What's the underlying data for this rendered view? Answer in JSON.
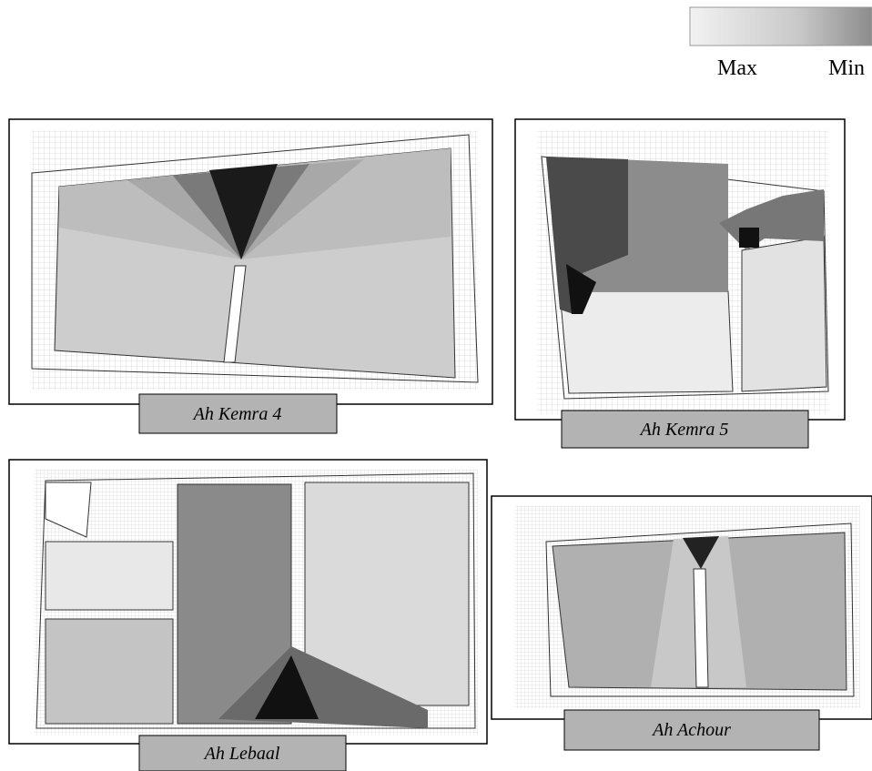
{
  "legend": {
    "max_label": "Max",
    "min_label": "Min"
  },
  "panels": [
    {
      "label": "Ah Kemra 4"
    },
    {
      "label": "Ah Kemra 5"
    },
    {
      "label": "Ah Lebaal"
    },
    {
      "label": "Ah Achour"
    }
  ]
}
